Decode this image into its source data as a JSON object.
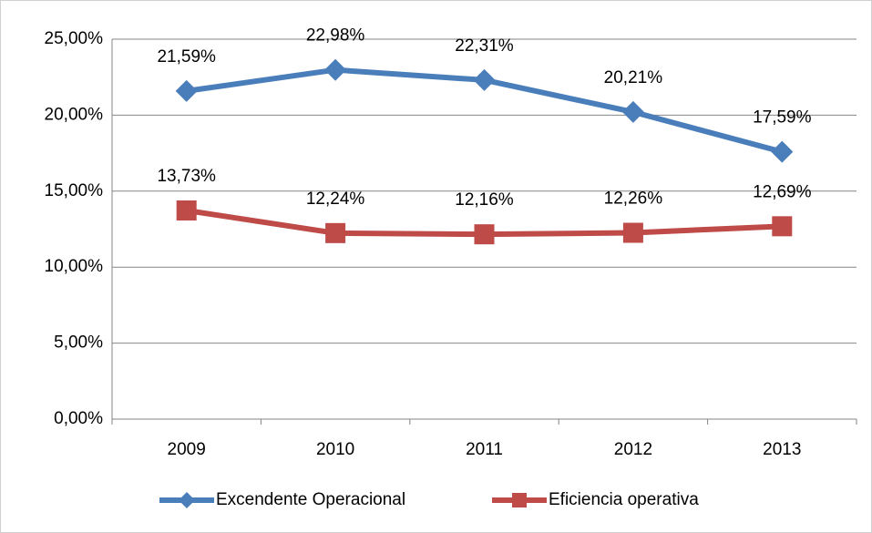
{
  "chart_data": {
    "type": "line",
    "categories": [
      "2009",
      "2010",
      "2011",
      "2012",
      "2013"
    ],
    "series": [
      {
        "name": "Excendente Operacional",
        "color": "#4a7ebb",
        "marker": "diamond",
        "values": [
          21.59,
          22.98,
          22.31,
          20.21,
          17.59
        ],
        "value_labels": [
          "21,59%",
          "22,98%",
          "22,31%",
          "20,21%",
          "17,59%"
        ]
      },
      {
        "name": "Eficiencia operativa",
        "color": "#be4b48",
        "marker": "square",
        "values": [
          13.73,
          12.24,
          12.16,
          12.26,
          12.69
        ],
        "value_labels": [
          "13,73%",
          "12,24%",
          "12,16%",
          "12,26%",
          "12,69%"
        ]
      }
    ],
    "ylim": [
      0,
      25
    ],
    "yticks": [
      {
        "value": 0,
        "label": "0,00%"
      },
      {
        "value": 5,
        "label": "5,00%"
      },
      {
        "value": 10,
        "label": "10,00%"
      },
      {
        "value": 15,
        "label": "15,00%"
      },
      {
        "value": 20,
        "label": "20,00%"
      },
      {
        "value": 25,
        "label": "25,00%"
      }
    ],
    "grid": true,
    "legend": "bottom"
  }
}
